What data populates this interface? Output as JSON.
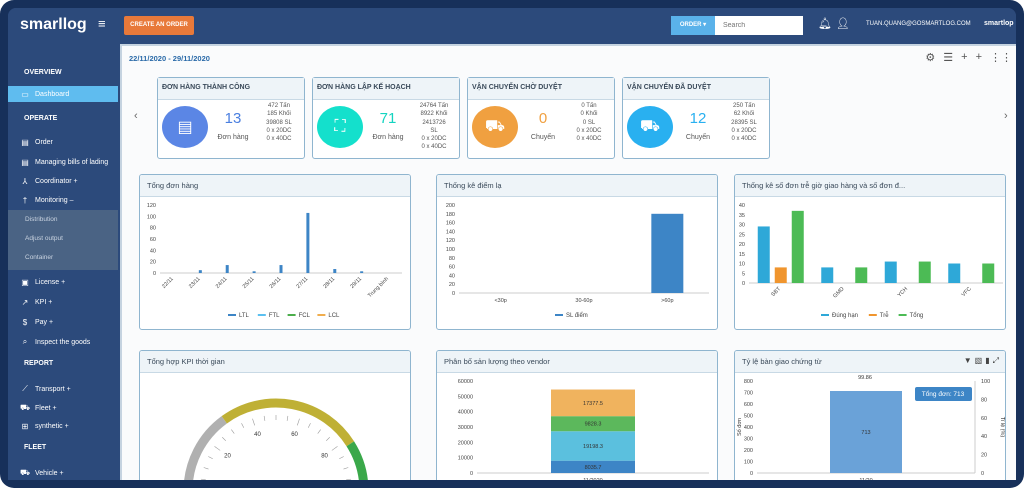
{
  "header": {
    "logo": "smarllog",
    "create_order": "CREATE AN ORDER",
    "order_dropdown": "ORDER ▾",
    "search_placeholder": "Search",
    "user_email": "TUAN.QUANG@GOSMARTLOG.COM",
    "brand": "smartlop"
  },
  "sidebar": {
    "sections": [
      {
        "title": "OVERVIEW"
      },
      {
        "title": "OPERATE"
      },
      {
        "title": "REPORT"
      },
      {
        "title": "FLEET"
      }
    ],
    "items": [
      {
        "label": "Dashboard",
        "icon": "dashboard-icon"
      },
      {
        "label": "Order",
        "icon": "clipboard-icon"
      },
      {
        "label": "Managing bills of lading",
        "icon": "clipboard-icon"
      },
      {
        "label": "Coordinator  +",
        "icon": "sitemap-icon"
      },
      {
        "label": "Monitoring  –",
        "icon": "person-icon"
      },
      {
        "label": "License  +",
        "icon": "license-icon"
      },
      {
        "label": "KPI  +",
        "icon": "trend-icon"
      },
      {
        "label": "Pay  +",
        "icon": "dollar-icon"
      },
      {
        "label": "Inspect the goods",
        "icon": "search-icon"
      },
      {
        "label": "Transport  +",
        "icon": "chart-icon"
      },
      {
        "label": "Fleet  +",
        "icon": "truck-icon"
      },
      {
        "label": "synthetic  +",
        "icon": "plus-square-icon"
      },
      {
        "label": "Vehicle  +",
        "icon": "truck-icon"
      }
    ],
    "subitems": [
      "Distribution",
      "Adjust output",
      "Container"
    ]
  },
  "main": {
    "date_range": "22/11/2020 - 29/11/2020",
    "cards": [
      {
        "title": "ĐƠN HÀNG THÀNH CÔNG",
        "value": "13",
        "unit": "Đơn hàng",
        "details": [
          "472 Tấn",
          "185 Khối",
          "39808 SL",
          "0 x 20DC",
          "0 x 40DC"
        ],
        "color": "#5b86e5",
        "num_color": "#4a7fe0",
        "icon": "invoice-icon"
      },
      {
        "title": "ĐƠN HÀNG LẬP KẾ HOẠCH",
        "value": "71",
        "unit": "Đơn hàng",
        "details": [
          "24764 Tấn",
          "8922 Khối",
          "2413726",
          "SL",
          "0 x 20DC",
          "0 x 40DC"
        ],
        "color": "#14e0cc",
        "num_color": "#14d4c0",
        "icon": "sitemap-icon"
      },
      {
        "title": "VẬN CHUYỂN CHỜ DUYỆT",
        "value": "0",
        "unit": "Chuyến",
        "details": [
          "0 Tấn",
          "0 Khối",
          "0 SL",
          "0 x 20DC",
          "0 x 40DC"
        ],
        "color": "#f0a040",
        "num_color": "#f0a040",
        "icon": "truck-icon"
      },
      {
        "title": "VẬN CHUYỂN ĐÃ DUYỆT",
        "value": "12",
        "unit": "Chuyến",
        "details": [
          "250 Tấn",
          "62 Khối",
          "28395 SL",
          "0 x 20DC",
          "0 x 40DC"
        ],
        "color": "#29b0f0",
        "num_color": "#29b0f0",
        "icon": "truck-icon"
      }
    ]
  },
  "chart_data": [
    {
      "type": "bar",
      "title": "Tổng đơn hàng",
      "categories": [
        "22/11",
        "23/11",
        "24/11",
        "25/11",
        "26/11",
        "27/11",
        "28/11",
        "29/11",
        "Trung bình"
      ],
      "series": [
        {
          "name": "LTL",
          "values": [
            0,
            5,
            14,
            3,
            14,
            106,
            7,
            3,
            0
          ],
          "color": "#3d85c6"
        },
        {
          "name": "FTL",
          "values": [
            0,
            0,
            0,
            0,
            0,
            0,
            0,
            0,
            0
          ],
          "color": "#5bc0f0"
        },
        {
          "name": "FCL",
          "values": [
            0,
            0,
            0,
            0,
            0,
            0,
            0,
            0,
            0
          ],
          "color": "#4cae4c"
        },
        {
          "name": "LCL",
          "values": [
            0,
            0,
            0,
            0,
            0,
            0,
            0,
            0,
            0
          ],
          "color": "#f0ad4e"
        }
      ],
      "ylim": [
        0,
        120
      ],
      "yticks": [
        0,
        20,
        40,
        60,
        80,
        100,
        120
      ],
      "legend": "bottom"
    },
    {
      "type": "bar",
      "title": "Thống kê điểm lạ",
      "categories": [
        "<30p",
        "30-60p",
        ">60p"
      ],
      "series": [
        {
          "name": "SL điểm",
          "values": [
            0,
            0,
            180
          ],
          "color": "#3d85c6"
        }
      ],
      "ylim": [
        0,
        200
      ],
      "yticks": [
        0,
        20,
        40,
        60,
        80,
        100,
        120,
        140,
        160,
        180,
        200
      ],
      "legend": "bottom"
    },
    {
      "type": "bar",
      "title": "Thống kê số đơn trễ giờ giao hàng và số đơn đ...",
      "categories": [
        "SBT",
        "GMD",
        "YCH",
        "VFC"
      ],
      "series": [
        {
          "name": "Đúng hạn",
          "values": [
            29,
            8,
            11,
            10
          ],
          "color": "#2ea8d8"
        },
        {
          "name": "Trễ",
          "values": [
            8,
            0,
            0,
            0
          ],
          "color": "#f0952e"
        },
        {
          "name": "Tổng",
          "values": [
            37,
            8,
            11,
            10
          ],
          "color": "#4cbb55"
        }
      ],
      "ylim": [
        0,
        40
      ],
      "yticks": [
        0,
        5,
        10,
        15,
        20,
        25,
        30,
        35,
        40
      ],
      "legend": "bottom"
    },
    {
      "type": "gauge",
      "title": "Tổng hợp KPI thời gian",
      "value": 0,
      "range": [
        0,
        100
      ],
      "tick_labels": [
        0,
        20,
        40,
        60,
        80,
        100
      ],
      "bands": [
        {
          "from": 0,
          "to": 30,
          "color": "#b0b0b0"
        },
        {
          "from": 30,
          "to": 82,
          "color": "#bfb035"
        },
        {
          "from": 82,
          "to": 100,
          "color": "#3aa84a"
        }
      ]
    },
    {
      "type": "stacked-bar",
      "title": "Phân bố sản lượng theo vendor",
      "categories": [
        "11/2020"
      ],
      "series": [
        {
          "values": [
            8035.7
          ],
          "color": "#3d85c6"
        },
        {
          "values": [
            19198.3
          ],
          "color": "#5bc0de"
        },
        {
          "values": [
            9828.3
          ],
          "color": "#5cb85c"
        },
        {
          "values": [
            17377.5
          ],
          "color": "#f0b35e"
        }
      ],
      "ylim": [
        0,
        60000
      ],
      "yticks": [
        0,
        10000,
        20000,
        30000,
        40000,
        50000,
        60000
      ]
    },
    {
      "type": "bar",
      "title": "Tỷ lệ bàn giao chứng từ",
      "categories": [
        "11/20"
      ],
      "series": [
        {
          "name": "Tổng đơn",
          "values": [
            713
          ],
          "color": "#6aa2d8"
        }
      ],
      "rate_values": [
        99.86
      ],
      "ylabel": "Số đơn",
      "y2label": "Tỉ lệ (%)",
      "ylim": [
        0,
        800
      ],
      "yticks": [
        0,
        100,
        200,
        300,
        400,
        500,
        600,
        700,
        800
      ],
      "y2lim": [
        0,
        100
      ],
      "y2ticks": [
        0,
        20,
        40,
        60,
        80,
        100
      ],
      "tooltip": "Tổng đơn: 713"
    }
  ]
}
